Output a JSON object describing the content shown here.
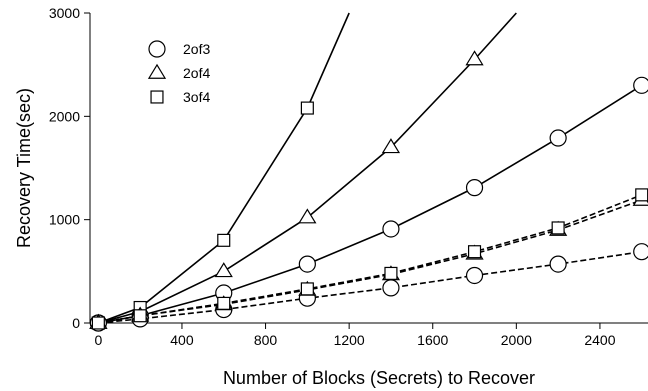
{
  "chart_data": {
    "type": "line",
    "xlabel": "Number of Blocks (Secrets) to Recover",
    "ylabel": "Recovery Time(sec)",
    "xlim": [
      -40,
      2630
    ],
    "ylim": [
      0,
      3000
    ],
    "xticks": [
      0,
      400,
      800,
      1200,
      1600,
      2000,
      2400
    ],
    "yticks": [
      0,
      1000,
      2000,
      3000
    ],
    "grid": false,
    "legend_position": "top-left",
    "legend": [
      {
        "label": "2of3",
        "marker": "circle"
      },
      {
        "label": "2of4",
        "marker": "triangle"
      },
      {
        "label": "3of4",
        "marker": "square"
      }
    ],
    "series": [
      {
        "marker": "circle",
        "dashed": false,
        "x": [
          0,
          200,
          600,
          1000,
          1400,
          1800,
          2200,
          2600
        ],
        "y": [
          0,
          70,
          290,
          570,
          910,
          1310,
          1790,
          2300
        ]
      },
      {
        "marker": "triangle",
        "dashed": false,
        "x": [
          0,
          200,
          600,
          1000,
          1400,
          1800,
          2000
        ],
        "y": [
          0,
          110,
          500,
          1020,
          1700,
          2550,
          3000
        ]
      },
      {
        "marker": "square",
        "dashed": false,
        "x": [
          0,
          200,
          600,
          1000,
          1200
        ],
        "y": [
          0,
          150,
          800,
          2080,
          3000
        ]
      },
      {
        "marker": "circle",
        "dashed": true,
        "x": [
          0,
          200,
          600,
          1000,
          1400,
          1800,
          2200,
          2600
        ],
        "y": [
          0,
          40,
          130,
          240,
          340,
          460,
          570,
          690
        ]
      },
      {
        "marker": "triangle",
        "dashed": true,
        "x": [
          0,
          200,
          600,
          1000,
          1400,
          1800,
          2200,
          2600
        ],
        "y": [
          0,
          70,
          180,
          320,
          470,
          670,
          900,
          1190
        ]
      },
      {
        "marker": "square",
        "dashed": true,
        "x": [
          0,
          200,
          600,
          1000,
          1400,
          1800,
          2200,
          2600
        ],
        "y": [
          0,
          70,
          190,
          330,
          480,
          690,
          920,
          1240
        ]
      }
    ]
  }
}
